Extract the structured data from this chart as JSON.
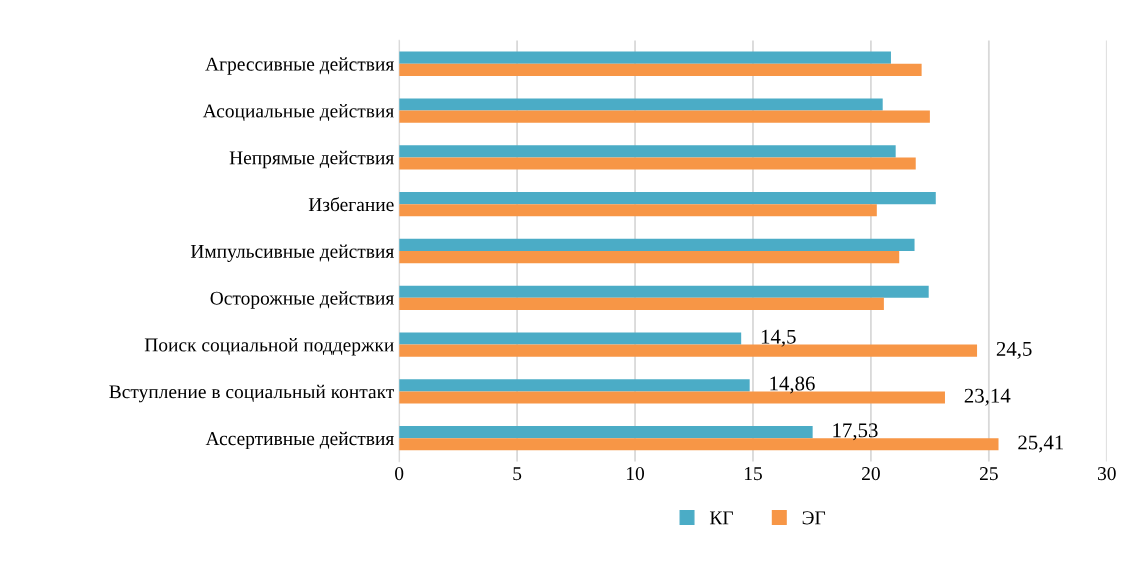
{
  "chart_data": {
    "type": "bar",
    "orientation": "horizontal",
    "categories": [
      "Агрессивные действия",
      "Асоциальные действия",
      "Непрямые действия",
      "Избегание",
      "Импульсивные действия",
      "Осторожные действия",
      "Поиск социальной поддержки",
      "Вступление в социальный контакт",
      "Ассертивные действия"
    ],
    "series": [
      {
        "name": "КГ",
        "color": "#4bacc6",
        "values": [
          20.85,
          20.5,
          21.05,
          22.75,
          21.85,
          22.45,
          14.5,
          14.86,
          17.53
        ],
        "value_labels": [
          null,
          null,
          null,
          null,
          null,
          null,
          "14,5",
          "14,86",
          "17,53"
        ]
      },
      {
        "name": "ЭГ",
        "color": "#f79646",
        "values": [
          22.15,
          22.5,
          21.9,
          20.25,
          21.2,
          20.55,
          24.5,
          23.14,
          25.41
        ],
        "value_labels": [
          null,
          null,
          null,
          null,
          null,
          null,
          "24,5",
          "23,14",
          "25,41"
        ]
      }
    ],
    "xlim": [
      0,
      30
    ],
    "xticks": [
      0,
      5,
      10,
      15,
      20,
      25,
      30
    ],
    "grid": "x",
    "legend": "bottom"
  }
}
